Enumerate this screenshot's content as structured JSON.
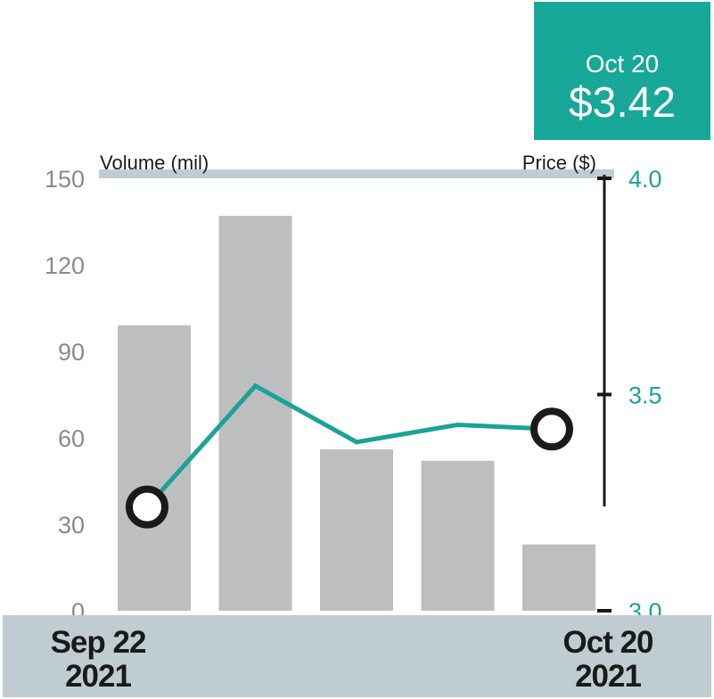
{
  "callout": {
    "date": "Oct 20",
    "price": "$3.42"
  },
  "x_labels": {
    "start": {
      "month_day": "Sep 22",
      "year": "2021"
    },
    "end": {
      "month_day": "Oct 20",
      "year": "2021"
    }
  },
  "chart_data": {
    "type": "bar",
    "volume_series": {
      "axis_label": "Volume (mil)",
      "values": [
        99,
        137,
        56,
        52,
        23
      ],
      "ylim": [
        0,
        150
      ],
      "ticks": [
        "0",
        "30",
        "60",
        "90",
        "120",
        "150"
      ],
      "color": "#bdbec0"
    },
    "price_series": {
      "type": "line",
      "axis_label": "Price ($)",
      "values": [
        3.24,
        3.52,
        3.39,
        3.43,
        3.42
      ],
      "ylim": [
        3.0,
        4.0
      ],
      "ticks": [
        "3.0",
        "3.5",
        "4.0"
      ],
      "color": "#1aa396",
      "marked_points": [
        0,
        4
      ]
    },
    "grid": false
  }
}
